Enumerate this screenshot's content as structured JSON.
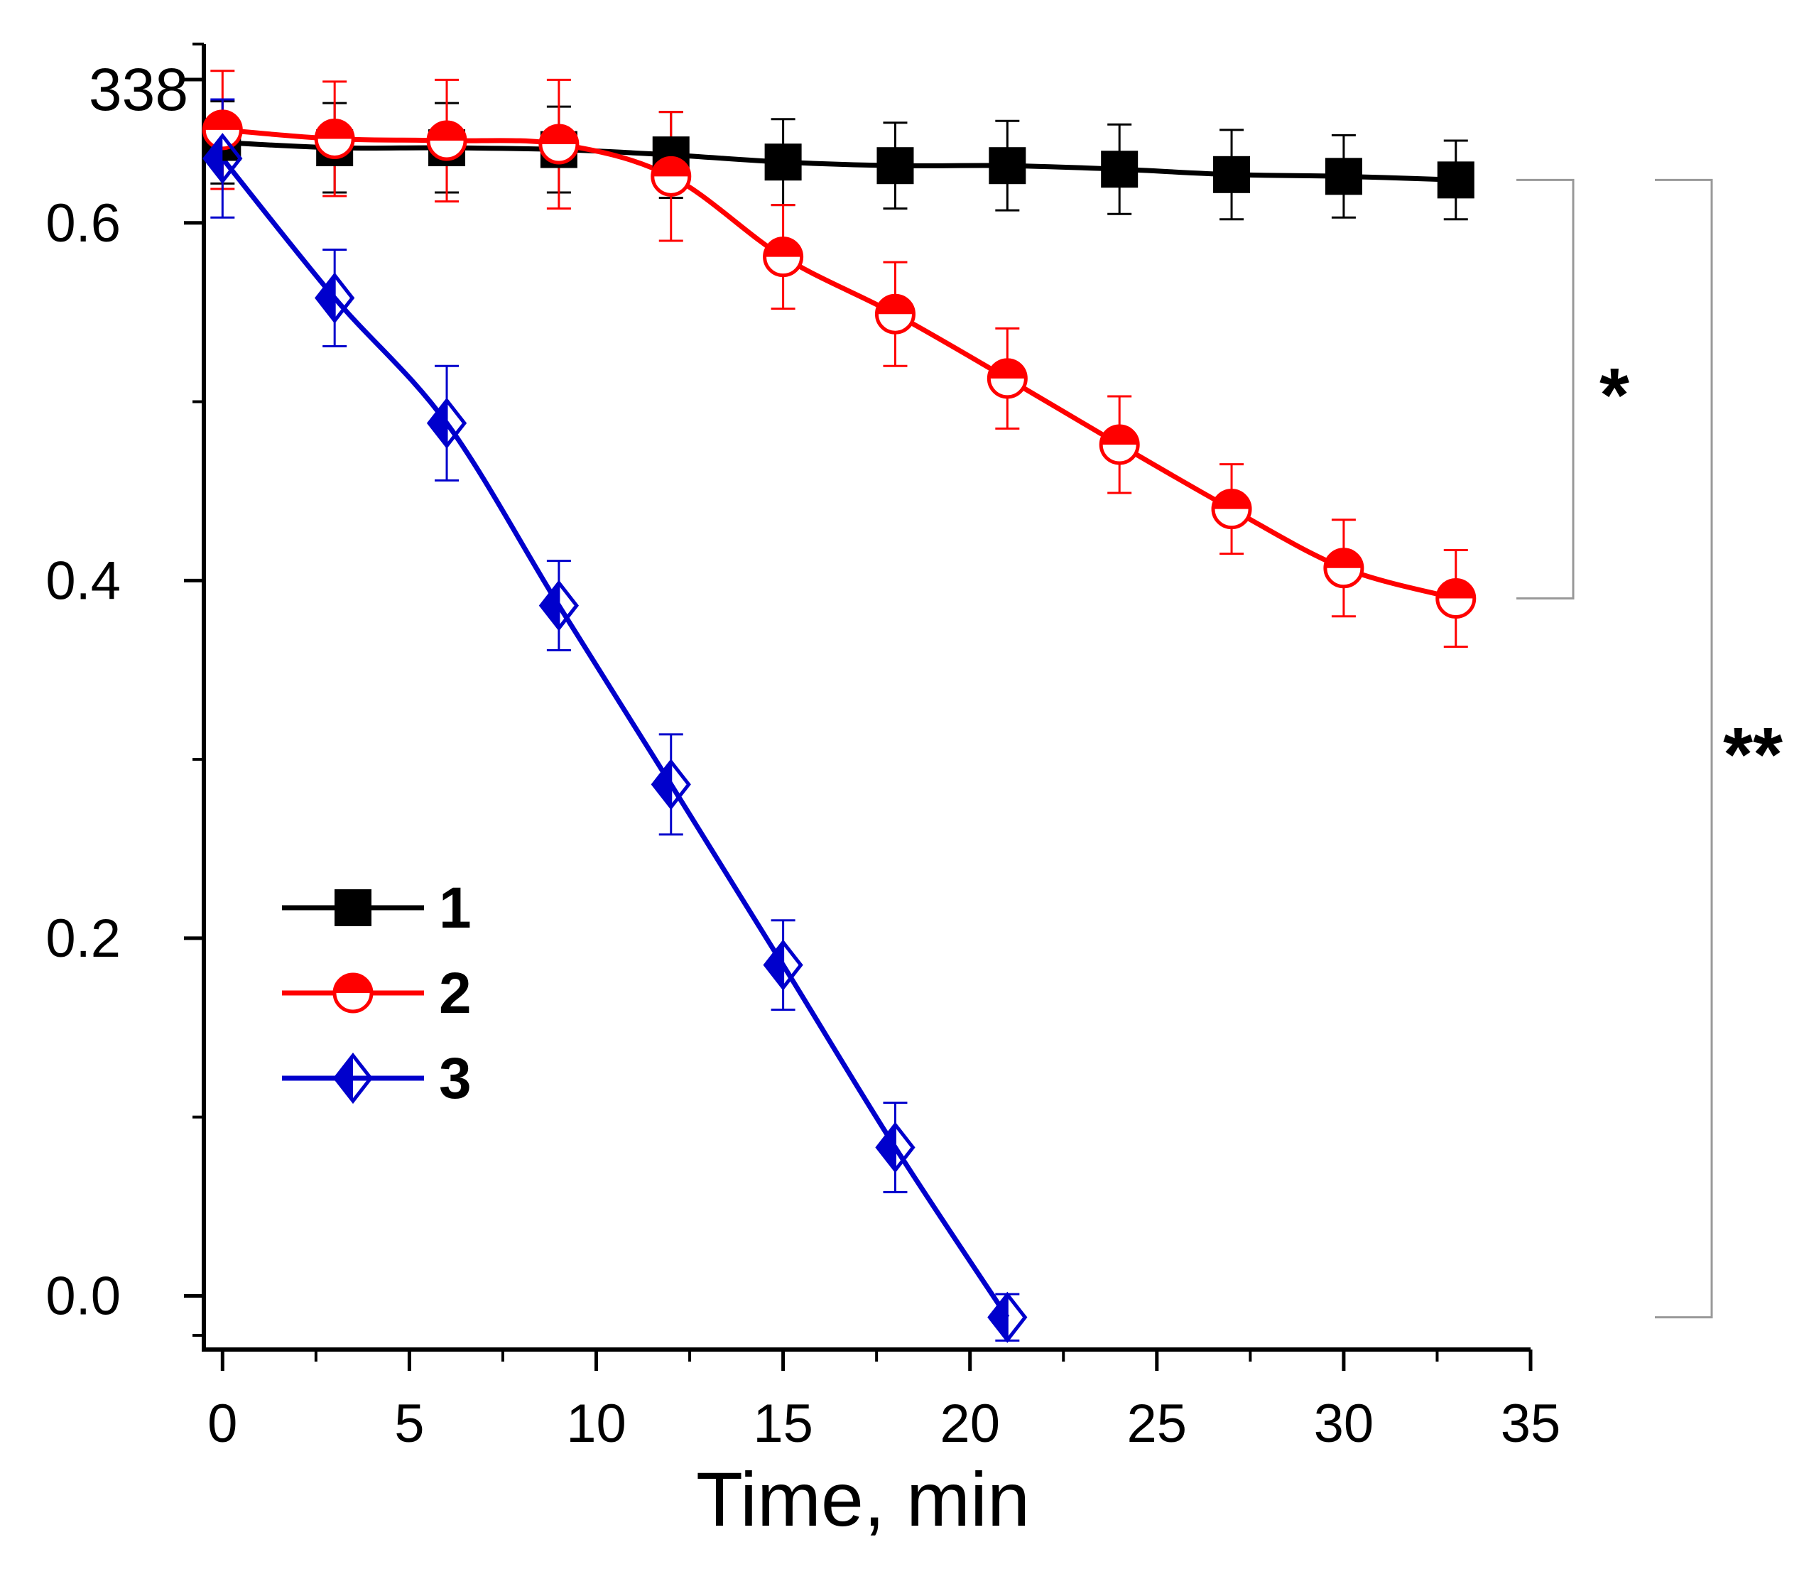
{
  "chart_data": {
    "type": "line",
    "xlabel": "Time, min",
    "ylabel_top": "338",
    "xlim": [
      -0.5,
      35
    ],
    "ylim": [
      -0.03,
      0.7
    ],
    "xticks": [
      0,
      5,
      10,
      15,
      20,
      25,
      30,
      35
    ],
    "xtick_labels": [
      "0",
      "5",
      "10",
      "15",
      "20",
      "25",
      "30",
      "35"
    ],
    "yticks": [
      0.0,
      0.2,
      0.4,
      0.6
    ],
    "ytick_labels": [
      "0.0",
      "0.2",
      "0.4",
      "0.6"
    ],
    "legend_position": "lower-left",
    "series": [
      {
        "name": "1",
        "color": "#000000",
        "marker": "square",
        "x": [
          0,
          3,
          6,
          9,
          12,
          15,
          18,
          21,
          24,
          27,
          30,
          33
        ],
        "y": [
          0.645,
          0.642,
          0.642,
          0.641,
          0.638,
          0.634,
          0.632,
          0.632,
          0.63,
          0.627,
          0.626,
          0.624
        ],
        "err": [
          0.023,
          0.025,
          0.025,
          0.024,
          0.024,
          0.024,
          0.024,
          0.025,
          0.025,
          0.025,
          0.023,
          0.022
        ]
      },
      {
        "name": "2",
        "color": "#ff0000",
        "marker": "circle-half",
        "x": [
          0,
          3,
          6,
          9,
          12,
          15,
          18,
          21,
          24,
          27,
          30,
          33
        ],
        "y": [
          0.652,
          0.647,
          0.646,
          0.644,
          0.626,
          0.581,
          0.549,
          0.513,
          0.476,
          0.44,
          0.407,
          0.39
        ],
        "err": [
          0.033,
          0.032,
          0.034,
          0.036,
          0.036,
          0.029,
          0.029,
          0.028,
          0.027,
          0.025,
          0.027,
          0.027
        ]
      },
      {
        "name": "3",
        "color": "#0000cc",
        "marker": "diamond-half",
        "x": [
          0,
          3,
          6,
          9,
          12,
          15,
          18,
          21
        ],
        "y": [
          0.636,
          0.558,
          0.488,
          0.386,
          0.286,
          0.185,
          0.083,
          -0.012
        ],
        "err": [
          0.033,
          0.027,
          0.032,
          0.025,
          0.028,
          0.025,
          0.025,
          0.013
        ]
      }
    ],
    "significance_brackets": [
      {
        "label": "*",
        "from_series": "1",
        "to_series": "2",
        "from_y": 0.624,
        "to_y": 0.39
      },
      {
        "label": "**",
        "from_series": "1",
        "to_series": "3",
        "from_y": 0.624,
        "to_y": -0.012
      }
    ]
  }
}
